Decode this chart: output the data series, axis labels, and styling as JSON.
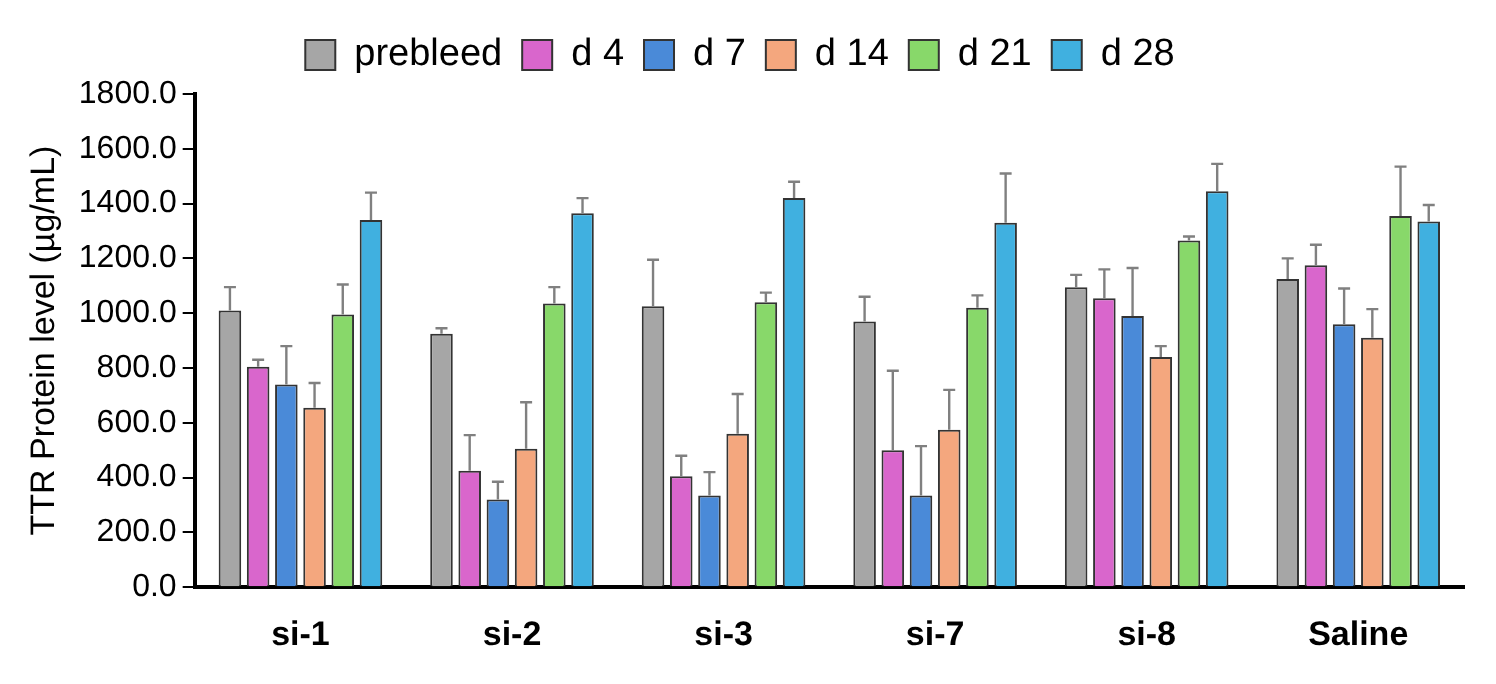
{
  "chart_data": {
    "type": "bar",
    "ylabel": "TTR Protein level (µg/mL)",
    "categories": [
      "si-1",
      "si-2",
      "si-3",
      "si-7",
      "si-8",
      "Saline"
    ],
    "ylim": [
      0,
      1800
    ],
    "yticks": [
      {
        "value": 0,
        "label": "0.0"
      },
      {
        "value": 200,
        "label": "200.0"
      },
      {
        "value": 400,
        "label": "400.0"
      },
      {
        "value": 600,
        "label": "600.0"
      },
      {
        "value": 800,
        "label": "800.0"
      },
      {
        "value": 1000,
        "label": "1000.0"
      },
      {
        "value": 1200,
        "label": "1200.0"
      },
      {
        "value": 1400,
        "label": "1400.0"
      },
      {
        "value": 1600,
        "label": "1600.0"
      },
      {
        "value": 1800,
        "label": "1800.0"
      }
    ],
    "grid": false,
    "legend": "top",
    "series": [
      {
        "name": "prebleed",
        "color": "#a6a6a6",
        "values": [
          1010,
          925,
          1025,
          970,
          1095,
          1125
        ],
        "errors": [
          [
            1010,
            1095
          ],
          [
            925,
            945
          ],
          [
            1025,
            1195
          ],
          [
            970,
            1060
          ],
          [
            1095,
            1140
          ],
          [
            1125,
            1200
          ]
        ]
      },
      {
        "name": "d 4",
        "color": "#d966cc",
        "values": [
          805,
          425,
          405,
          500,
          1055,
          1175
        ],
        "errors": [
          [
            805,
            830
          ],
          [
            425,
            555
          ],
          [
            405,
            480
          ],
          [
            500,
            790
          ],
          [
            1055,
            1160
          ],
          [
            1175,
            1250
          ]
        ]
      },
      {
        "name": "d 7",
        "color": "#4a8ad8",
        "values": [
          740,
          320,
          335,
          335,
          990,
          960
        ],
        "errors": [
          [
            740,
            880
          ],
          [
            320,
            385
          ],
          [
            335,
            420
          ],
          [
            335,
            515
          ],
          [
            990,
            1165
          ],
          [
            960,
            1090
          ]
        ]
      },
      {
        "name": "d 14",
        "color": "#f4a77e",
        "values": [
          655,
          505,
          560,
          575,
          840,
          910
        ],
        "errors": [
          [
            655,
            745
          ],
          [
            505,
            675
          ],
          [
            560,
            705
          ],
          [
            575,
            720
          ],
          [
            840,
            880
          ],
          [
            910,
            1015
          ]
        ]
      },
      {
        "name": "d 21",
        "color": "#88d86a",
        "values": [
          995,
          1035,
          1040,
          1020,
          1265,
          1355
        ],
        "errors": [
          [
            995,
            1105
          ],
          [
            1035,
            1095
          ],
          [
            1040,
            1075
          ],
          [
            1020,
            1065
          ],
          [
            1265,
            1280
          ],
          [
            1355,
            1535
          ]
        ]
      },
      {
        "name": "d 28",
        "color": "#40b0e0",
        "values": [
          1340,
          1365,
          1420,
          1330,
          1445,
          1335
        ],
        "errors": [
          [
            1340,
            1440
          ],
          [
            1365,
            1420
          ],
          [
            1420,
            1480
          ],
          [
            1330,
            1510
          ],
          [
            1445,
            1545
          ],
          [
            1335,
            1395
          ]
        ]
      }
    ]
  }
}
